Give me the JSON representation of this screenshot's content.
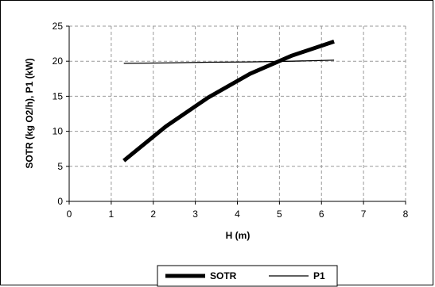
{
  "chart_data": {
    "type": "line",
    "xlabel": "H (m)",
    "ylabel": "SOTR (kg O2/h), P1 (kW)",
    "xlim": [
      0,
      8
    ],
    "ylim": [
      0,
      25
    ],
    "x_ticks": [
      "0",
      "1",
      "2",
      "3",
      "4",
      "5",
      "6",
      "7",
      "8"
    ],
    "y_ticks": [
      "0",
      "5",
      "10",
      "15",
      "20",
      "25"
    ],
    "grid": "dashed",
    "legend_position": "bottom",
    "series": [
      {
        "name": "SOTR",
        "x": [
          1.3,
          2.3,
          3.3,
          4.3,
          5.3,
          6.3
        ],
        "y": [
          5.8,
          10.7,
          14.8,
          18.2,
          20.8,
          22.8
        ],
        "color": "#000000",
        "line": "thick"
      },
      {
        "name": "P1",
        "x": [
          1.3,
          2.3,
          3.3,
          4.3,
          5.3,
          6.3
        ],
        "y": [
          19.7,
          19.75,
          19.85,
          19.9,
          20.0,
          20.15
        ],
        "color": "#000000",
        "line": "thin"
      }
    ]
  }
}
